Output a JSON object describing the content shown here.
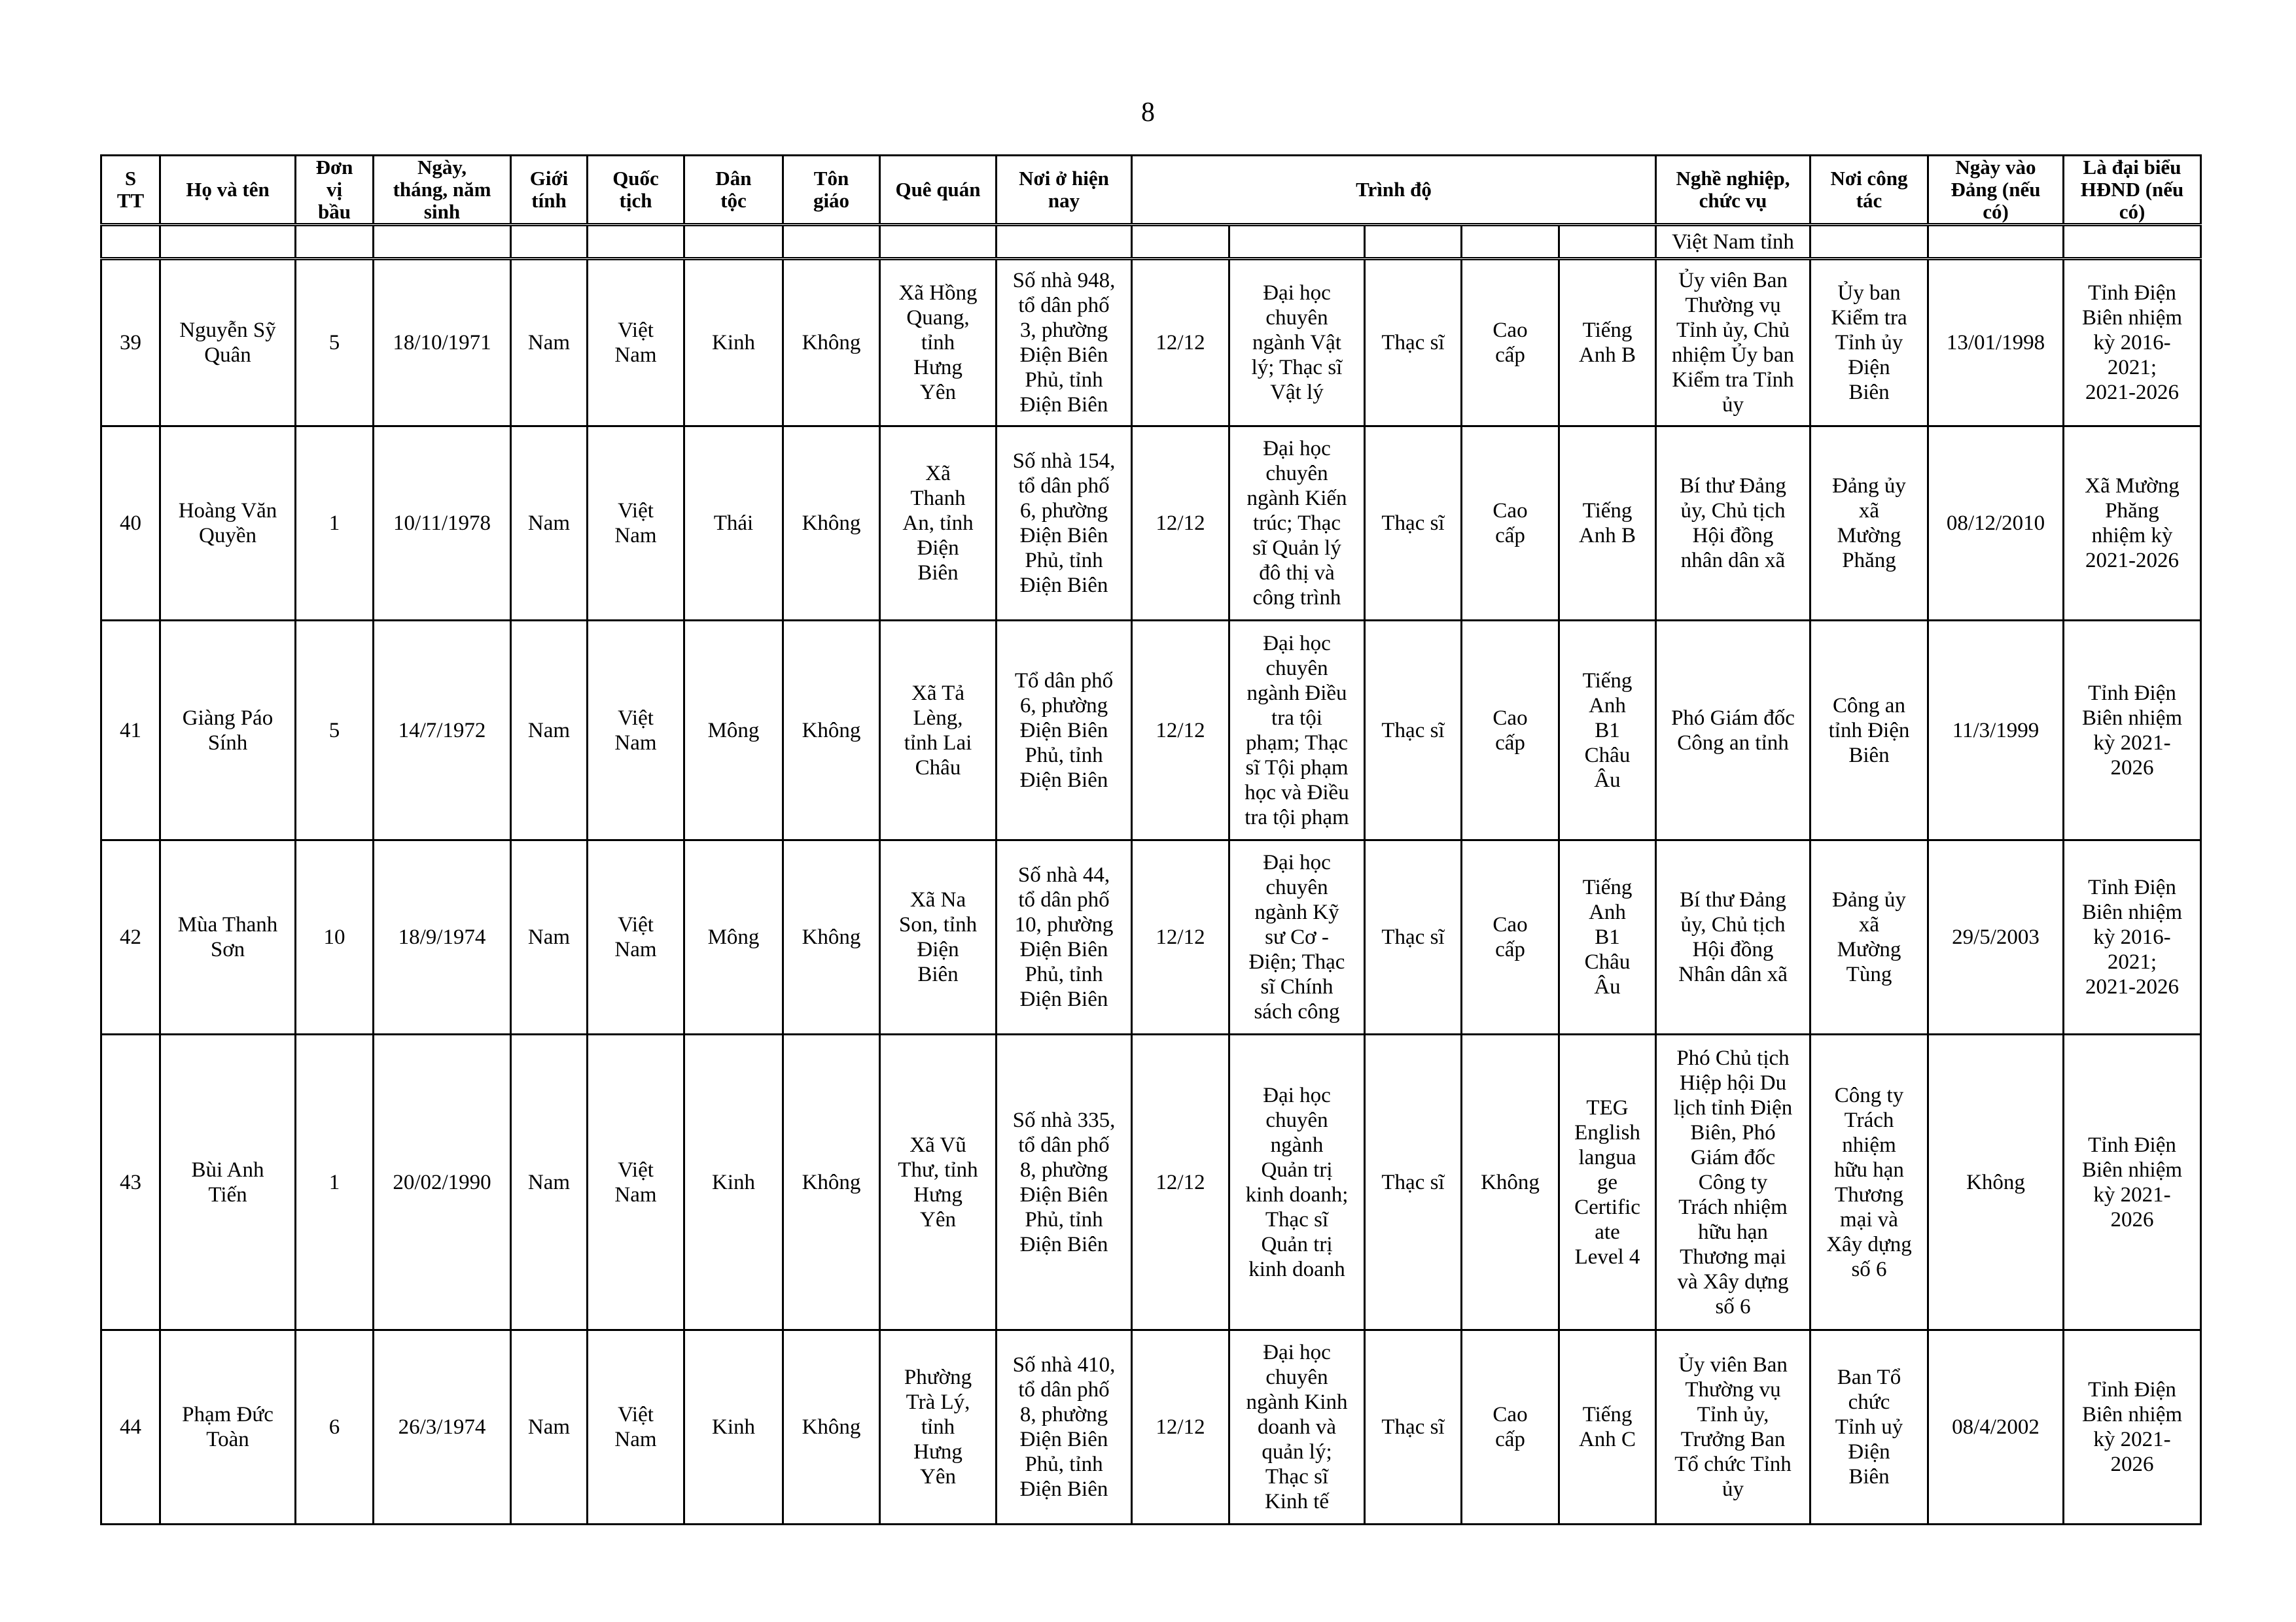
{
  "page_number": "8",
  "headers": {
    "stt": "S\nTT",
    "name": "Họ và tên",
    "unit": "Đơn\nvị\nbầu",
    "dob": "Ngày,\ntháng, năm\nsinh",
    "gender": "Giới\ntính",
    "nationality": "Quốc\ntịch",
    "ethnicity": "Dân\ntộc",
    "religion": "Tôn\ngiáo",
    "hometown": "Quê quán",
    "residence": "Nơi ở hiện\nnay",
    "education": "Trình độ",
    "occupation": "Nghề nghiệp,\nchức vụ",
    "workplace": "Nơi công\ntác",
    "party_date": "Ngày vào\nĐảng (nếu\ncó)",
    "council": "Là đại biểu\nHĐND (nếu\ncó)"
  },
  "continuation_row": {
    "occupation": "Việt Nam tỉnh"
  },
  "rows": [
    {
      "stt": "39",
      "name": "Nguyễn Sỹ\nQuân",
      "unit": "5",
      "dob": "18/10/1971",
      "gender": "Nam",
      "nationality": "Việt\nNam",
      "ethnicity": "Kinh",
      "religion": "Không",
      "hometown": "Xã Hồng\nQuang,\ntỉnh\nHưng\nYên",
      "residence": "Số nhà 948,\ntổ dân phố\n3, phường\nĐiện Biên\nPhủ, tỉnh\nĐiện Biên",
      "general": "12/12",
      "major": "Đại học\nchuyên\nngành Vật\nlý; Thạc sĩ\nVật lý",
      "academic": "Thạc sĩ",
      "political": "Cao\ncấp",
      "language": "Tiếng\nAnh B",
      "occupation": "Ủy viên Ban\nThường vụ\nTỉnh ủy, Chủ\nnhiệm Ủy ban\nKiểm tra Tỉnh\nủy",
      "workplace": "Ủy ban\nKiểm tra\nTỉnh ủy\nĐiện\nBiên",
      "party_date": "13/01/1998",
      "council": "Tỉnh Điện\nBiên nhiệm\nkỳ 2016-\n2021;\n2021-2026"
    },
    {
      "stt": "40",
      "name": "Hoàng Văn\nQuyền",
      "unit": "1",
      "dob": "10/11/1978",
      "gender": "Nam",
      "nationality": "Việt\nNam",
      "ethnicity": "Thái",
      "religion": "Không",
      "hometown": "Xã\nThanh\nAn, tỉnh\nĐiện\nBiên",
      "residence": "Số nhà 154,\ntổ dân phố\n6, phường\nĐiện Biên\nPhủ, tỉnh\nĐiện Biên",
      "general": "12/12",
      "major": "Đại học\nchuyên\nngành Kiến\ntrúc; Thạc\nsĩ Quản lý\nđô thị và\ncông trình",
      "academic": "Thạc sĩ",
      "political": "Cao\ncấp",
      "language": "Tiếng\nAnh B",
      "occupation": "Bí thư Đảng\nủy, Chủ tịch\nHội đồng\nnhân dân xã",
      "workplace": "Đảng ủy\nxã\nMường\nPhăng",
      "party_date": "08/12/2010",
      "council": "Xã Mường\nPhăng\nnhiệm kỳ\n2021-2026"
    },
    {
      "stt": "41",
      "name": "Giàng Páo\nSính",
      "unit": "5",
      "dob": "14/7/1972",
      "gender": "Nam",
      "nationality": "Việt\nNam",
      "ethnicity": "Mông",
      "religion": "Không",
      "hometown": "Xã Tả\nLèng,\ntỉnh Lai\nChâu",
      "residence": "Tổ dân phố\n6, phường\nĐiện Biên\nPhủ, tỉnh\nĐiện Biên",
      "general": "12/12",
      "major": "Đại học\nchuyên\nngành Điều\ntra tội\nphạm; Thạc\nsĩ Tội phạm\nhọc và Điều\ntra tội phạm",
      "academic": "Thạc sĩ",
      "political": "Cao\ncấp",
      "language": "Tiếng\nAnh\nB1\nChâu\nÂu",
      "occupation": "Phó Giám đốc\nCông an tỉnh",
      "workplace": "Công an\ntỉnh Điện\nBiên",
      "party_date": "11/3/1999",
      "council": "Tỉnh Điện\nBiên nhiệm\nkỳ 2021-\n2026"
    },
    {
      "stt": "42",
      "name": "Mùa Thanh\nSơn",
      "unit": "10",
      "dob": "18/9/1974",
      "gender": "Nam",
      "nationality": "Việt\nNam",
      "ethnicity": "Mông",
      "religion": "Không",
      "hometown": "Xã Na\nSon, tỉnh\nĐiện\nBiên",
      "residence": "Số nhà 44,\ntổ dân phố\n10, phường\nĐiện Biên\nPhủ, tỉnh\nĐiện Biên",
      "general": "12/12",
      "major": "Đại học\nchuyên\nngành Kỹ\nsư Cơ -\nĐiện; Thạc\nsĩ  Chính\nsách công",
      "academic": "Thạc sĩ",
      "political": "Cao\ncấp",
      "language": "Tiếng\nAnh\nB1\nChâu\nÂu",
      "occupation": "Bí thư Đảng\nủy, Chủ tịch\nHội đồng\nNhân dân xã",
      "workplace": "Đảng ủy\nxã\nMường\nTùng",
      "party_date": "29/5/2003",
      "council": "Tỉnh Điện\nBiên nhiệm\nkỳ 2016-\n2021;\n2021-2026"
    },
    {
      "stt": "43",
      "name": "Bùi Anh\nTiến",
      "unit": "1",
      "dob": "20/02/1990",
      "gender": "Nam",
      "nationality": "Việt\nNam",
      "ethnicity": "Kinh",
      "religion": "Không",
      "hometown": "Xã Vũ\nThư, tỉnh\nHưng\nYên",
      "residence": "Số nhà 335,\ntổ dân phố\n8, phường\nĐiện Biên\nPhủ, tỉnh\nĐiện Biên",
      "general": "12/12",
      "major": "Đại học\nchuyên\nngành\nQuản trị\nkinh doanh;\nThạc sĩ\nQuản trị\nkinh doanh",
      "academic": "Thạc sĩ",
      "political": "Không",
      "language": "TEG\nEnglish\nlangua\nge\nCertific\nate\nLevel 4",
      "occupation": "Phó Chủ tịch\nHiệp hội Du\nlịch tỉnh Điện\nBiên, Phó\nGiám đốc\nCông ty\nTrách nhiệm\nhữu hạn\nThương mại\nvà Xây dựng\nsố 6",
      "workplace": "Công ty\nTrách\nnhiệm\nhữu hạn\nThương\nmại và\nXây dựng\nsố 6",
      "party_date": "Không",
      "council": "Tỉnh Điện\nBiên nhiệm\nkỳ 2021-\n2026"
    },
    {
      "stt": "44",
      "name": "Phạm Đức\nToàn",
      "unit": "6",
      "dob": "26/3/1974",
      "gender": "Nam",
      "nationality": "Việt\nNam",
      "ethnicity": "Kinh",
      "religion": "Không",
      "hometown": "Phường\nTrà Lý,\ntỉnh\nHưng\nYên",
      "residence": "Số nhà 410,\ntổ dân phố\n8, phường\nĐiện Biên\nPhủ, tỉnh\nĐiện Biên",
      "general": "12/12",
      "major": "Đại học\nchuyên\nngành Kinh\ndoanh và\nquản lý;\nThạc sĩ\nKinh tế",
      "academic": "Thạc sĩ",
      "political": "Cao\ncấp",
      "language": "Tiếng\nAnh C",
      "occupation": "Ủy viên Ban\nThường vụ\nTỉnh ủy,\nTrưởng Ban\nTổ chức Tỉnh\nủy",
      "workplace": "Ban Tổ\nchức\nTỉnh uỷ\nĐiện\nBiên",
      "party_date": "08/4/2002",
      "council": "Tỉnh Điện\nBiên nhiệm\nkỳ 2021-\n2026"
    }
  ]
}
